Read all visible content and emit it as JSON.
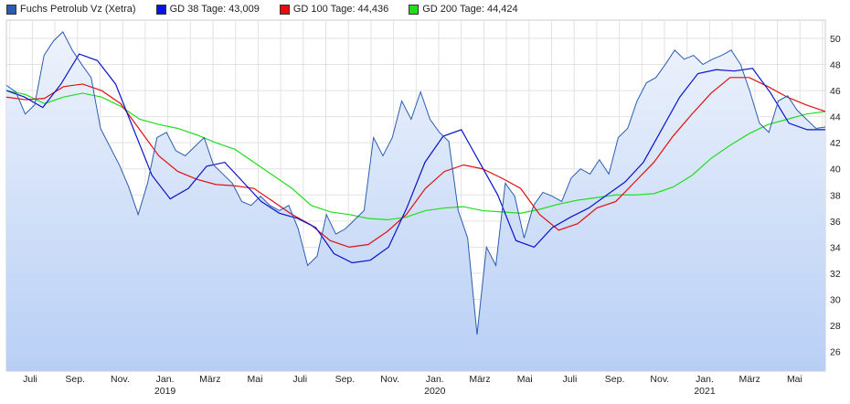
{
  "chart_data": {
    "type": "line",
    "title": "",
    "legend_placement": "top-left",
    "x_unit": "months from chart start (early June 2018)",
    "x_range": [
      0,
      36.3
    ],
    "ylim": [
      24.5,
      51.4
    ],
    "y_ticks": [
      26,
      28,
      30,
      32,
      34,
      36,
      38,
      40,
      42,
      44,
      46,
      48,
      50
    ],
    "x_ticks": [
      {
        "label": "Juli",
        "year": ""
      },
      {
        "label": "Sep.",
        "year": ""
      },
      {
        "label": "Nov.",
        "year": ""
      },
      {
        "label": "Jan.",
        "year": "2019"
      },
      {
        "label": "März",
        "year": ""
      },
      {
        "label": "Mai",
        "year": ""
      },
      {
        "label": "Juli",
        "year": ""
      },
      {
        "label": "Sep.",
        "year": ""
      },
      {
        "label": "Nov.",
        "year": ""
      },
      {
        "label": "Jan.",
        "year": "2020"
      },
      {
        "label": "März",
        "year": ""
      },
      {
        "label": "Mai",
        "year": ""
      },
      {
        "label": "Juli",
        "year": ""
      },
      {
        "label": "Sep.",
        "year": ""
      },
      {
        "label": "Nov.",
        "year": ""
      },
      {
        "label": "Jan.",
        "year": "2021"
      },
      {
        "label": "März",
        "year": ""
      },
      {
        "label": "Mai",
        "year": ""
      }
    ],
    "series": [
      {
        "name": "Fuchs Petrolub Vz (Xetra)",
        "color": "#2a5db0",
        "legend_color": "#2a5db0",
        "values": [
          46.4,
          45.9,
          44.2,
          44.9,
          48.7,
          49.8,
          50.5,
          49.1,
          48,
          47,
          43.1,
          41.7,
          40.3,
          38.6,
          36.5,
          38.9,
          42.4,
          42.8,
          41.4,
          41,
          41.7,
          42.4,
          40.3,
          39.6,
          38.9,
          37.5,
          37.2,
          37.9,
          37.2,
          36.8,
          37.2,
          35.4,
          32.6,
          33.3,
          36.5,
          35,
          35.4,
          36.1,
          36.8,
          42.4,
          41,
          42.4,
          45.2,
          43.8,
          45.9,
          43.8,
          42.8,
          42.1,
          36.8,
          34.7,
          27.3,
          34,
          32.6,
          38.9,
          37.9,
          34.7,
          37.2,
          38.2,
          37.9,
          37.5,
          39.3,
          40,
          39.6,
          40.7,
          39.6,
          42.4,
          43.1,
          45.2,
          46.6,
          47,
          48,
          49.1,
          48.4,
          48.7,
          48,
          48.4,
          48.7,
          49.1,
          48,
          45.9,
          43.5,
          42.8,
          45.2,
          45.6,
          44.5,
          43.8,
          43.1,
          43.2
        ]
      },
      {
        "name": "GD 38 Tage: 43,009",
        "color": "#0a14c8",
        "legend_color": "#0a14e0",
        "values": [
          46.0,
          45.5,
          44.7,
          46.5,
          48.8,
          48.3,
          46.5,
          43,
          39.5,
          37.7,
          38.5,
          40.2,
          40.5,
          39,
          37.5,
          36.6,
          36.2,
          35.5,
          33.5,
          32.8,
          33,
          34,
          37,
          40.5,
          42.5,
          43,
          40.5,
          38,
          34.5,
          34,
          35.5,
          36.3,
          37,
          38,
          39,
          40.5,
          43,
          45.5,
          47.3,
          47.6,
          47.5,
          47.7,
          45.8,
          43.5,
          43,
          43.0
        ]
      },
      {
        "name": "GD 100 Tage: 44,436",
        "color": "#e01010",
        "legend_color": "#e01010",
        "values": [
          45.5,
          45.3,
          45.4,
          46.3,
          46.5,
          46,
          45,
          43,
          41,
          39.8,
          39.2,
          38.8,
          38.7,
          38.5,
          37.5,
          36.5,
          35.7,
          34.5,
          34,
          34.2,
          35.2,
          36.5,
          38.5,
          39.8,
          40.3,
          40,
          39.3,
          38.5,
          36.5,
          35.3,
          35.8,
          37,
          37.5,
          39,
          40.5,
          42.5,
          44.2,
          45.8,
          47,
          47,
          46.3,
          45.5,
          44.9,
          44.4
        ]
      },
      {
        "name": "GD 200 Tage: 44,424",
        "color": "#20dd20",
        "legend_color": "#20dd20",
        "values": [
          46,
          45.7,
          45,
          45.5,
          45.8,
          45.5,
          44.8,
          43.8,
          43.4,
          43.1,
          42.6,
          42,
          41.5,
          40.5,
          39.5,
          38.5,
          37.2,
          36.7,
          36.5,
          36.2,
          36.1,
          36.3,
          36.8,
          37,
          37.1,
          36.8,
          36.7,
          36.6,
          36.9,
          37.3,
          37.6,
          37.8,
          38,
          38,
          38.1,
          38.6,
          39.5,
          40.8,
          41.8,
          42.7,
          43.4,
          43.8,
          44.2,
          44.4
        ]
      }
    ]
  }
}
